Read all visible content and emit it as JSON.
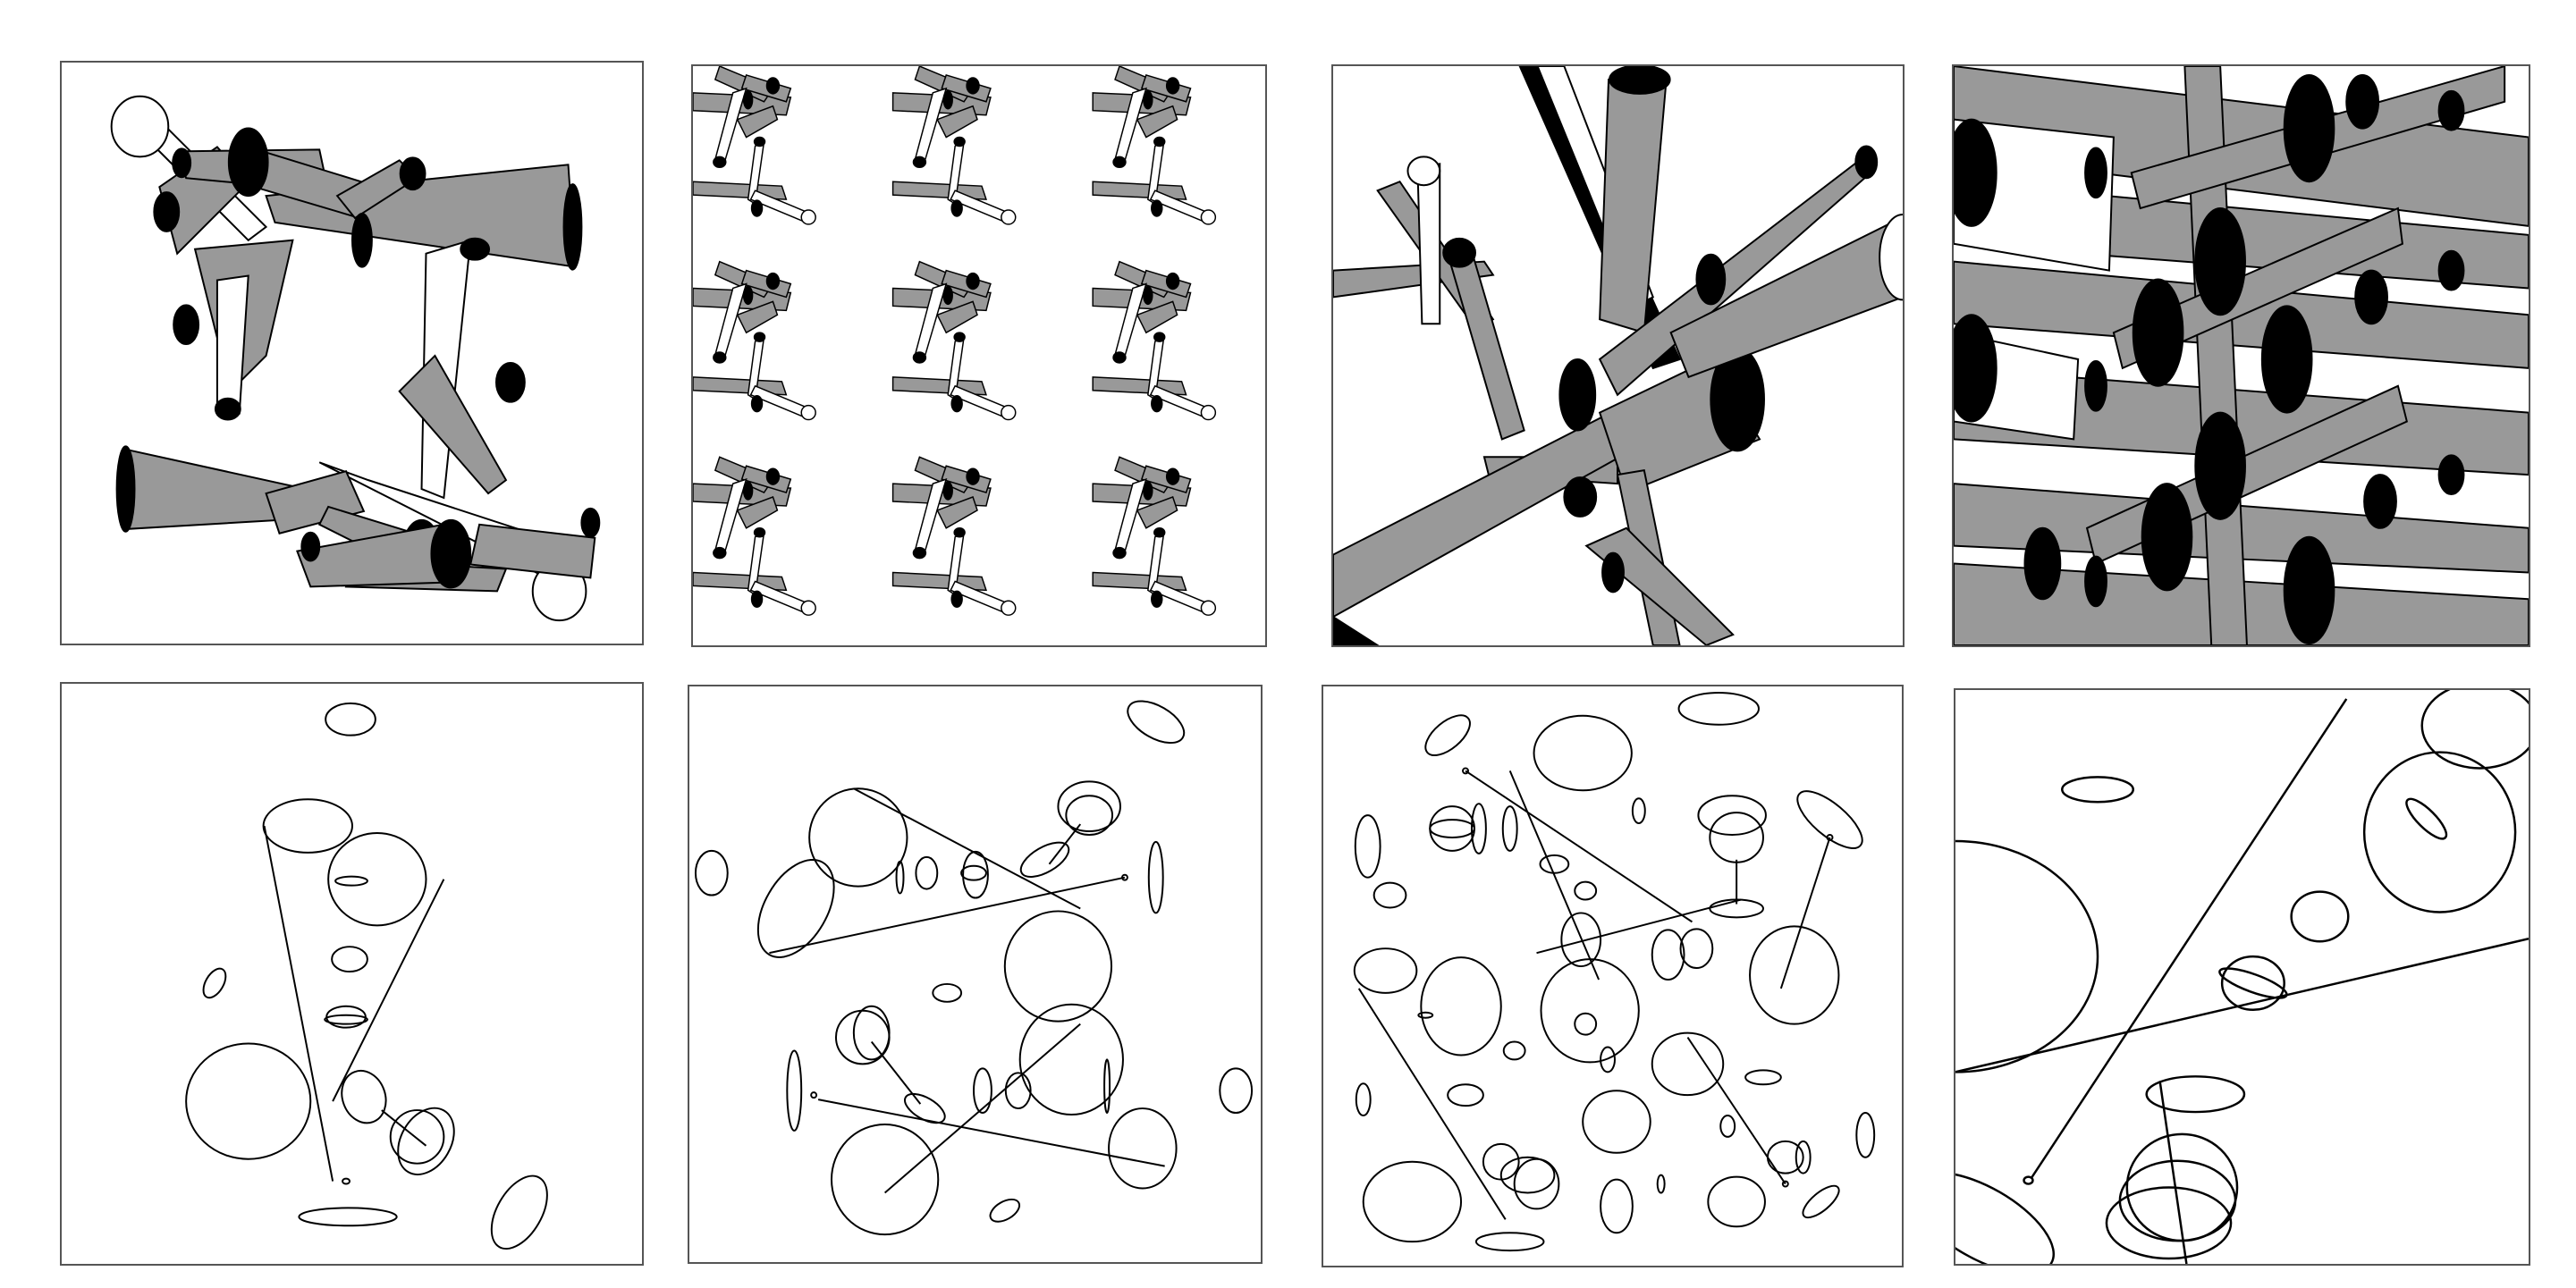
{
  "figure": {
    "panels": [
      {
        "id": "p1",
        "row": 1,
        "content": "shaded-cylinders-two-clusters"
      },
      {
        "id": "p2",
        "row": 1,
        "content": "shaded-cylinders-tiled-grid"
      },
      {
        "id": "p3",
        "row": 1,
        "content": "shaded-cylinders-closeup"
      },
      {
        "id": "p4",
        "row": 1,
        "content": "shaded-cylinders-dense-layers"
      },
      {
        "id": "p5",
        "row": 2,
        "content": "outline-ellipses-sparse"
      },
      {
        "id": "p6",
        "row": 2,
        "content": "outline-ellipses-medium"
      },
      {
        "id": "p7",
        "row": 2,
        "content": "outline-ellipses-dense"
      },
      {
        "id": "p8",
        "row": 2,
        "content": "outline-ellipses-closeup"
      }
    ],
    "colors": {
      "fill_dark": "#000000",
      "fill_grey": "#999999",
      "fill_light": "#ffffff",
      "stroke": "#000000",
      "frame": "#555555"
    }
  }
}
